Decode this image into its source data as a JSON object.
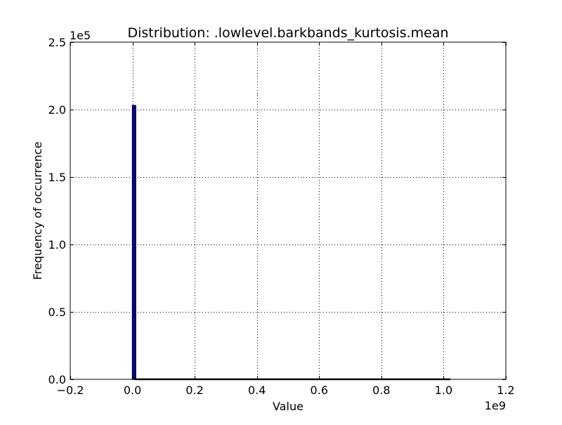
{
  "chart_data": {
    "type": "bar",
    "title": "Distribution: .lowlevel.barkbands_kurtosis.mean",
    "xlabel": "Value",
    "ylabel": "Frequency of occurrence",
    "x_offset_label": "1e9",
    "y_offset_label": "1e5",
    "xlim": [
      -0.2,
      1.2
    ],
    "ylim": [
      0,
      2.5
    ],
    "x_scale": 1000000000,
    "y_scale": 100000,
    "x_ticks": [
      -0.2,
      0.0,
      0.2,
      0.4,
      0.6,
      0.8,
      1.0,
      1.2
    ],
    "x_tick_labels": [
      "−0.2",
      "0.0",
      "0.2",
      "0.4",
      "0.6",
      "0.8",
      "1.0",
      "1.2"
    ],
    "y_ticks": [
      0.0,
      0.5,
      1.0,
      1.5,
      2.0,
      2.5
    ],
    "y_tick_labels": [
      "0.0",
      "0.5",
      "1.0",
      "1.5",
      "2.0",
      "2.5"
    ],
    "grid": true,
    "bar_color": "#0000cc",
    "bins": [
      {
        "x_start": 0.0,
        "x_end": 0.0102,
        "value": 2.03
      },
      {
        "x_start": 0.0102,
        "x_end": 1.02,
        "value": 0.003
      }
    ]
  }
}
